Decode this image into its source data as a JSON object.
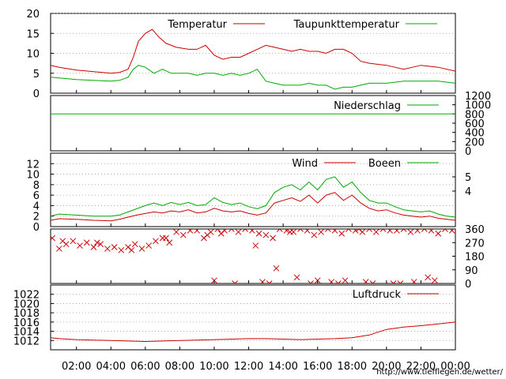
{
  "colors": {
    "red": "#cc0000",
    "green": "#00aa00",
    "grid": "#999999",
    "frame": "#000000"
  },
  "x_tick_labels": [
    "02:00",
    "04:00",
    "06:00",
    "08:00",
    "10:00",
    "12:00",
    "14:00",
    "16:00",
    "18:00",
    "20:00",
    "22:00",
    "00:00"
  ],
  "source_url": "http://www.tiefflegen.de/wetter/",
  "chart_data": [
    {
      "type": "line",
      "x_unit": "hours",
      "xlim": [
        0.5,
        24.0
      ],
      "ylim": [
        0,
        20
      ],
      "yticks": [
        "0",
        "5",
        "10",
        "15",
        "20"
      ],
      "grid": true,
      "legend_position": "top",
      "series": [
        {
          "name": "Temperatur",
          "color": "#cc0000",
          "x": [
            0.5,
            1,
            2,
            3,
            4,
            4.5,
            5,
            5.3,
            5.6,
            6,
            6.4,
            6.8,
            7.2,
            7.8,
            8.5,
            9,
            9.5,
            10,
            10.5,
            11,
            11.5,
            12,
            12.5,
            13,
            13.5,
            14,
            14.5,
            15,
            15.5,
            16,
            16.5,
            17,
            17.5,
            18,
            18.5,
            19,
            20,
            21,
            22,
            23,
            24
          ],
          "y": [
            7,
            6.5,
            5.8,
            5.4,
            5,
            5.2,
            6,
            9,
            13,
            15,
            16,
            14,
            12.5,
            11.5,
            11,
            11,
            12,
            9.5,
            8.5,
            9,
            9,
            10,
            11,
            12,
            11.5,
            11,
            10.5,
            11,
            10.5,
            10.5,
            10,
            11,
            11,
            10,
            8,
            7.5,
            7,
            6,
            7,
            6.5,
            5.5
          ]
        },
        {
          "name": "Taupunkttemperatur",
          "color": "#00aa00",
          "x": [
            0.5,
            1,
            2,
            3,
            4,
            4.5,
            5,
            5.3,
            5.6,
            6,
            6.5,
            7,
            7.5,
            8,
            8.5,
            9,
            9.5,
            10,
            10.5,
            11,
            11.5,
            12,
            12.5,
            13,
            13.5,
            14,
            14.5,
            15,
            15.5,
            16,
            16.5,
            17,
            17.5,
            18,
            18.5,
            19,
            20,
            21,
            22,
            23,
            24
          ],
          "y": [
            4,
            3.8,
            3.4,
            3.2,
            3,
            3.2,
            4,
            6,
            7,
            6.5,
            5,
            6,
            5,
            5,
            5,
            4.5,
            5,
            5,
            4.5,
            5,
            4.5,
            5,
            6,
            3,
            2.5,
            2,
            2,
            2,
            2.5,
            2,
            2,
            1,
            1.5,
            1.5,
            2,
            2.5,
            2.5,
            3,
            3,
            3,
            2.5
          ]
        }
      ]
    },
    {
      "type": "line",
      "x_unit": "hours",
      "xlim": [
        0.5,
        24.0
      ],
      "ylim": [
        0,
        1200
      ],
      "yticks_right": [
        "0",
        "200",
        "400",
        "600",
        "800",
        "1000",
        "1200"
      ],
      "legend_position": "top-right",
      "series": [
        {
          "name": "Niederschlag",
          "color": "#00aa00",
          "x": [
            0.5,
            24.0
          ],
          "y": [
            800,
            800
          ]
        }
      ]
    },
    {
      "type": "line",
      "x_unit": "hours",
      "xlim": [
        0.5,
        24.0
      ],
      "ylim": [
        0,
        14
      ],
      "yticks": [
        "0",
        "2",
        "4",
        "6",
        "8",
        "10",
        "12"
      ],
      "yticks_right": [
        "4",
        "5"
      ],
      "grid": true,
      "legend_position": "top-right",
      "series": [
        {
          "name": "Wind",
          "color": "#cc0000",
          "x": [
            0.5,
            1,
            2,
            3,
            4,
            4.5,
            5,
            5.5,
            6,
            6.5,
            7,
            7.5,
            8,
            8.5,
            9,
            9.5,
            10,
            10.5,
            11,
            11.5,
            12,
            12.5,
            13,
            13.5,
            14,
            14.5,
            15,
            15.5,
            16,
            16.5,
            17,
            17.5,
            18,
            18.5,
            19,
            19.5,
            20,
            20.5,
            21,
            21.5,
            22,
            22.5,
            23,
            23.5,
            24
          ],
          "y": [
            1.2,
            1.5,
            1.4,
            1.2,
            1.1,
            1.4,
            1.8,
            2.2,
            2.5,
            2.8,
            2.6,
            3,
            2.8,
            3.2,
            2.6,
            2.8,
            3.5,
            3,
            2.8,
            3,
            2.5,
            2.2,
            2.6,
            4.5,
            5,
            5.5,
            4.8,
            6,
            4.5,
            6,
            6.5,
            5,
            6,
            4.5,
            3.5,
            3,
            3.2,
            2.6,
            2.2,
            2,
            1.8,
            2,
            1.6,
            1.4,
            1.2
          ]
        },
        {
          "name": "Boeen",
          "color": "#00aa00",
          "x": [
            0.5,
            1,
            2,
            3,
            4,
            4.5,
            5,
            5.5,
            6,
            6.5,
            7,
            7.5,
            8,
            8.5,
            9,
            9.5,
            10,
            10.5,
            11,
            11.5,
            12,
            12.5,
            13,
            13.5,
            14,
            14.5,
            15,
            15.5,
            16,
            16.5,
            17,
            17.5,
            18,
            18.5,
            19,
            19.5,
            20,
            20.5,
            21,
            21.5,
            22,
            22.5,
            23,
            23.5,
            24
          ],
          "y": [
            2,
            2.4,
            2.2,
            2,
            2,
            2.2,
            2.8,
            3.4,
            4,
            4.5,
            4,
            4.6,
            4.2,
            4.6,
            4,
            4.2,
            5.5,
            4.6,
            4.2,
            4.5,
            3.8,
            3.4,
            4,
            6.5,
            7.5,
            8,
            7,
            8.5,
            7,
            9,
            9.5,
            7.5,
            8.5,
            6.5,
            5,
            4.5,
            4.5,
            3.8,
            3.2,
            3,
            2.8,
            3,
            2.4,
            2,
            1.8
          ]
        }
      ]
    },
    {
      "type": "scatter",
      "marker": "x",
      "x_unit": "hours",
      "xlim": [
        0.5,
        24.0
      ],
      "ylim": [
        0,
        360
      ],
      "yticks_right": [
        "0",
        "90",
        "180",
        "270",
        "360"
      ],
      "series": [
        {
          "color": "#cc0000",
          "x": [
            0.6,
            1.0,
            1.4,
            1.8,
            2.2,
            2.6,
            3.0,
            3.4,
            3.8,
            4.2,
            4.6,
            5.0,
            5.4,
            5.8,
            6.2,
            6.6,
            7.0,
            7.4,
            7.8,
            8.2,
            8.6,
            9.0,
            9.4,
            9.8,
            10.2,
            10.6,
            11.0,
            11.4,
            11.8,
            12.2,
            12.6,
            13.0,
            13.4,
            13.8,
            14.2,
            14.6,
            15.0,
            15.4,
            15.8,
            16.2,
            16.6,
            17.0,
            17.4,
            17.8,
            18.2,
            18.6,
            19.0,
            19.4,
            19.8,
            20.2,
            20.6,
            21.0,
            21.4,
            21.8,
            22.2,
            22.6,
            23.0,
            23.4,
            23.8,
            1.2,
            3.2,
            5.2,
            7.2,
            9.6,
            10.4,
            12.4,
            13.6,
            14.4,
            15.6,
            16.8,
            17.6,
            18.4,
            19.2,
            20.4,
            21.6,
            22.8,
            10.0,
            11.2,
            12.8,
            13.2,
            14.8,
            16.0,
            17.2,
            18.8,
            20.8,
            22.4
          ],
          "y": [
            300,
            230,
            260,
            280,
            250,
            270,
            240,
            260,
            230,
            240,
            220,
            240,
            260,
            230,
            250,
            280,
            300,
            270,
            340,
            320,
            350,
            350,
            300,
            340,
            360,
            350,
            360,
            340,
            360,
            350,
            330,
            320,
            300,
            360,
            350,
            340,
            360,
            350,
            320,
            340,
            360,
            350,
            330,
            360,
            350,
            340,
            360,
            340,
            360,
            350,
            350,
            360,
            340,
            350,
            360,
            350,
            330,
            360,
            350,
            280,
            270,
            220,
            300,
            320,
            330,
            250,
            100,
            340,
            0,
            10,
            20,
            360,
            0,
            0,
            10,
            20,
            20,
            0,
            10,
            0,
            40,
            20,
            0,
            10,
            0,
            40
          ]
        }
      ]
    },
    {
      "type": "line",
      "x_unit": "hours",
      "xlim": [
        0.5,
        24.0
      ],
      "ylim": [
        1010,
        1024
      ],
      "yticks": [
        "1012",
        "1014",
        "1016",
        "1018",
        "1020",
        "1022"
      ],
      "grid": true,
      "legend_position": "top-right",
      "series": [
        {
          "name": "Luftdruck",
          "color": "#cc0000",
          "x": [
            0.5,
            1,
            2,
            3,
            4,
            5,
            6,
            7,
            8,
            9,
            10,
            11,
            12,
            13,
            14,
            15,
            16,
            17,
            18,
            19,
            19.5,
            20,
            21,
            22,
            23,
            24
          ],
          "y": [
            1012.6,
            1012.4,
            1012.2,
            1012.1,
            1012.0,
            1011.9,
            1011.8,
            1011.9,
            1012.0,
            1012.1,
            1012.2,
            1012.3,
            1012.4,
            1012.4,
            1012.3,
            1012.2,
            1012.3,
            1012.4,
            1012.6,
            1013.2,
            1013.8,
            1014.4,
            1014.9,
            1015.2,
            1015.6,
            1016.0
          ]
        }
      ]
    }
  ]
}
